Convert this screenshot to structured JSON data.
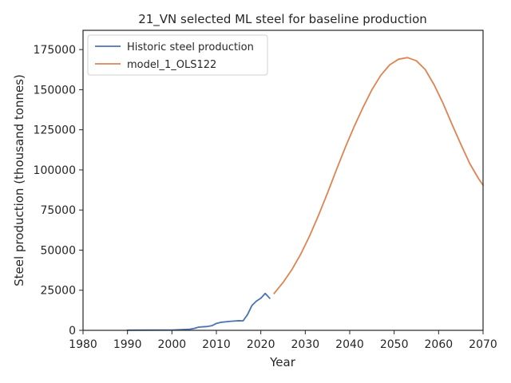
{
  "chart_data": {
    "type": "line",
    "title": "21_VN selected ML steel for baseline production",
    "xlabel": "Year",
    "ylabel": "Steel production (thousand tonnes)",
    "xlim": [
      1980,
      2070
    ],
    "ylim": [
      0,
      187000
    ],
    "xticks": [
      1980,
      1990,
      2000,
      2010,
      2020,
      2030,
      2040,
      2050,
      2060,
      2070
    ],
    "yticks": [
      0,
      25000,
      50000,
      75000,
      100000,
      125000,
      150000,
      175000
    ],
    "grid": false,
    "legend_position": "top-left",
    "series": [
      {
        "name": "Historic steel production",
        "color": "#4c72b0",
        "x": [
          1990,
          1995,
          2000,
          2004,
          2005,
          2006,
          2007,
          2008,
          2009,
          2010,
          2011,
          2012,
          2013,
          2014,
          2015,
          2016,
          2017,
          2018,
          2019,
          2020,
          2021,
          2022
        ],
        "y": [
          100,
          150,
          200,
          700,
          1200,
          2000,
          2200,
          2400,
          2900,
          4300,
          5000,
          5300,
          5600,
          5800,
          6000,
          5900,
          9800,
          15500,
          18200,
          20000,
          23000,
          20000
        ]
      },
      {
        "name": "model_1_OLS122",
        "color": "#dd8452",
        "x": [
          2023,
          2025,
          2027,
          2029,
          2031,
          2033,
          2035,
          2037,
          2039,
          2041,
          2043,
          2045,
          2047,
          2049,
          2051,
          2053,
          2055,
          2057,
          2059,
          2061,
          2063,
          2065,
          2067,
          2069,
          2070
        ],
        "y": [
          23000,
          29800,
          37900,
          47600,
          59000,
          71800,
          85600,
          100000,
          114000,
          127000,
          139000,
          150000,
          159000,
          165500,
          169000,
          170000,
          168000,
          162500,
          153000,
          141500,
          128500,
          116000,
          104000,
          94500,
          90500
        ]
      }
    ]
  }
}
